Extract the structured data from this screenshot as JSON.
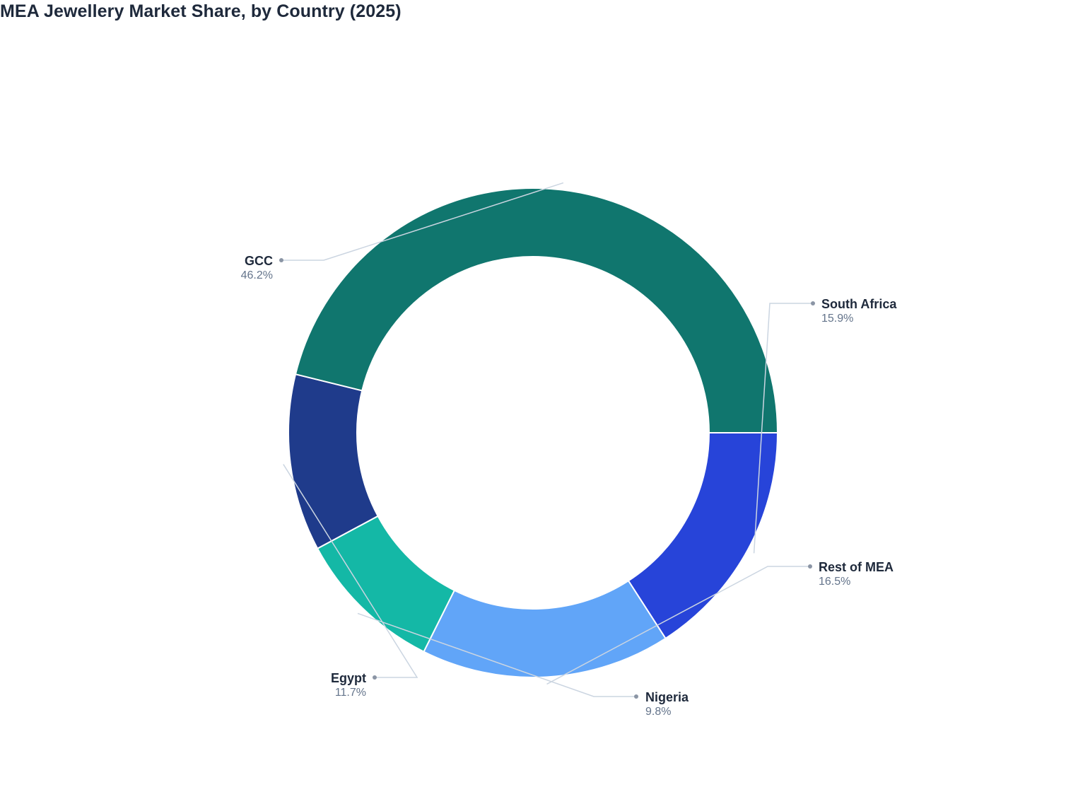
{
  "title": "MEA Jewellery Market Share, by Country (2025)",
  "chart_data": {
    "type": "pie",
    "variant": "donut",
    "title": "MEA Jewellery Market Share, by Country (2025)",
    "unit": "%",
    "legend": "none",
    "slices": [
      {
        "label": "South Africa",
        "value": 15.9,
        "value_label": "15.9%",
        "color": "#2744d9"
      },
      {
        "label": "Rest of MEA",
        "value": 16.5,
        "value_label": "16.5%",
        "color": "#61a5f8"
      },
      {
        "label": "Nigeria",
        "value": 9.8,
        "value_label": "9.8%",
        "color": "#14b8a6"
      },
      {
        "label": "Egypt",
        "value": 11.7,
        "value_label": "11.7%",
        "color": "#1f3b8b"
      },
      {
        "label": "GCC",
        "value": 46.2,
        "value_label": "46.2%",
        "color": "#10766e"
      }
    ]
  }
}
